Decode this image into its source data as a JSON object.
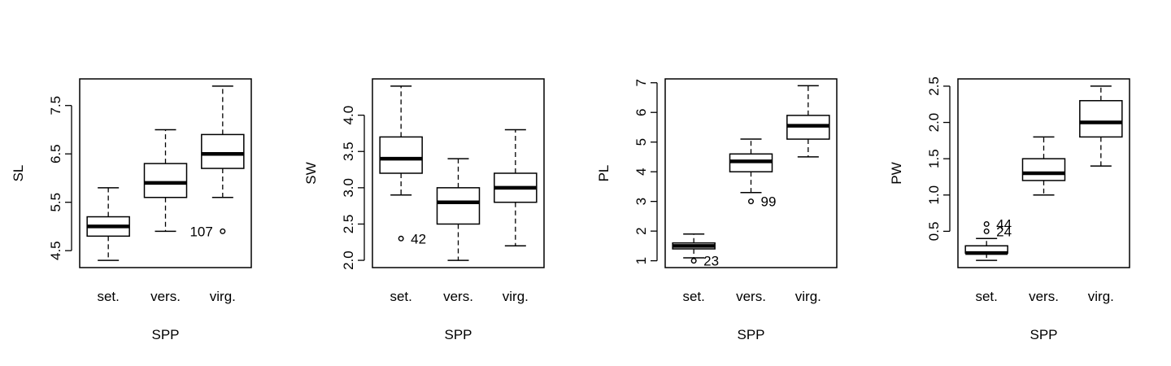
{
  "chart_data": [
    {
      "type": "box",
      "xlabel": "SPP",
      "ylabel": "SL",
      "ylim": [
        4.15,
        8.05
      ],
      "yticks": [
        4.5,
        5.5,
        6.5,
        7.5
      ],
      "ytick_labels": [
        "4.5",
        "5.5",
        "6.5",
        "7.5"
      ],
      "categories": [
        "set.",
        "vers.",
        "virg."
      ],
      "boxes": [
        {
          "category": "set.",
          "min": 4.3,
          "q1": 4.8,
          "median": 5.0,
          "q3": 5.2,
          "max": 5.8,
          "outliers": []
        },
        {
          "category": "vers.",
          "min": 4.9,
          "q1": 5.6,
          "median": 5.9,
          "q3": 6.3,
          "max": 7.0,
          "outliers": []
        },
        {
          "category": "virg.",
          "min": 5.6,
          "q1": 6.2,
          "median": 6.5,
          "q3": 6.9,
          "max": 7.9,
          "outliers": [
            {
              "value": 4.9,
              "label": "107"
            }
          ]
        }
      ]
    },
    {
      "type": "box",
      "xlabel": "SPP",
      "ylabel": "SW",
      "ylim": [
        1.9,
        4.5
      ],
      "yticks": [
        2.0,
        2.5,
        3.0,
        3.5,
        4.0
      ],
      "ytick_labels": [
        "2.0",
        "2.5",
        "3.0",
        "3.5",
        "4.0"
      ],
      "categories": [
        "set.",
        "vers.",
        "virg."
      ],
      "boxes": [
        {
          "category": "set.",
          "min": 2.9,
          "q1": 3.2,
          "median": 3.4,
          "q3": 3.7,
          "max": 4.4,
          "outliers": [
            {
              "value": 2.3,
              "label": "42"
            }
          ]
        },
        {
          "category": "vers.",
          "min": 2.0,
          "q1": 2.5,
          "median": 2.8,
          "q3": 3.0,
          "max": 3.4,
          "outliers": []
        },
        {
          "category": "virg.",
          "min": 2.2,
          "q1": 2.8,
          "median": 3.0,
          "q3": 3.2,
          "max": 3.8,
          "outliers": []
        }
      ]
    },
    {
      "type": "box",
      "xlabel": "SPP",
      "ylabel": "PL",
      "ylim": [
        0.77,
        7.13
      ],
      "yticks": [
        1,
        2,
        3,
        4,
        5,
        6,
        7
      ],
      "ytick_labels": [
        "1",
        "2",
        "3",
        "4",
        "5",
        "6",
        "7"
      ],
      "categories": [
        "set.",
        "vers.",
        "virg."
      ],
      "boxes": [
        {
          "category": "set.",
          "min": 1.1,
          "q1": 1.4,
          "median": 1.5,
          "q3": 1.6,
          "max": 1.9,
          "outliers": [
            {
              "value": 1.0,
              "label": "23"
            }
          ]
        },
        {
          "category": "vers.",
          "min": 3.3,
          "q1": 4.0,
          "median": 4.35,
          "q3": 4.6,
          "max": 5.1,
          "outliers": [
            {
              "value": 3.0,
              "label": "99"
            }
          ]
        },
        {
          "category": "virg.",
          "min": 4.5,
          "q1": 5.1,
          "median": 5.55,
          "q3": 5.9,
          "max": 6.9,
          "outliers": []
        }
      ]
    },
    {
      "type": "box",
      "xlabel": "SPP",
      "ylabel": "PW",
      "ylim": [
        0.0,
        2.6
      ],
      "yticks": [
        0.5,
        1.0,
        1.5,
        2.0,
        2.5
      ],
      "ytick_labels": [
        "0.5",
        "1.0",
        "1.5",
        "2.0",
        "2.5"
      ],
      "categories": [
        "set.",
        "vers.",
        "virg."
      ],
      "boxes": [
        {
          "category": "set.",
          "min": 0.1,
          "q1": 0.2,
          "median": 0.2,
          "q3": 0.3,
          "max": 0.4,
          "outliers": [
            {
              "value": 0.6,
              "label": "44"
            },
            {
              "value": 0.5,
              "label": "24"
            }
          ]
        },
        {
          "category": "vers.",
          "min": 1.0,
          "q1": 1.2,
          "median": 1.3,
          "q3": 1.5,
          "max": 1.8,
          "outliers": []
        },
        {
          "category": "virg.",
          "min": 1.4,
          "q1": 1.8,
          "median": 2.0,
          "q3": 2.3,
          "max": 2.5,
          "outliers": []
        }
      ]
    }
  ]
}
